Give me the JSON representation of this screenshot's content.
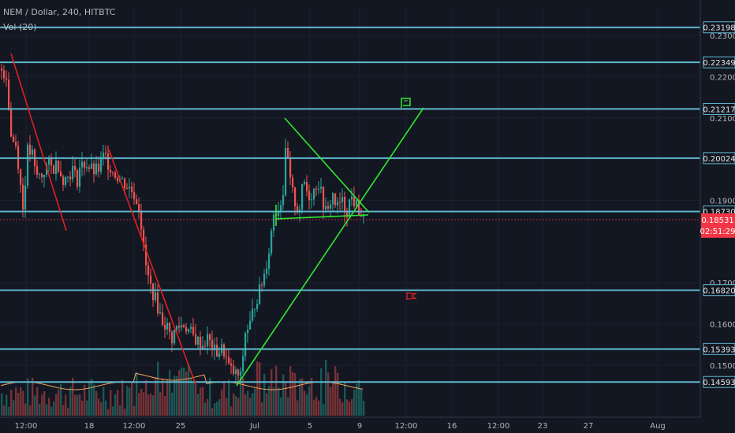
{
  "header": {
    "symbol_line": "NEM / Dollar, 240, HITBTC",
    "volume_line": "Vol (20)"
  },
  "colors": {
    "background": "#131722",
    "up": "#26a69a",
    "down": "#ef5350",
    "hline": "#5fb8cf",
    "trend_green": "#30e830",
    "trend_red": "#e02020",
    "price_badge": "#f23645",
    "volume_ma": "#f0a35a"
  },
  "chart_data": {
    "type": "candlestick",
    "title": "NEM / Dollar, 240, HITBTC",
    "indicator": "Vol (20)",
    "ylim": [
      0.1412,
      0.2367
    ],
    "y_ticks": [
      "0.23000",
      "0.22000",
      "0.21000",
      "0.20000",
      "0.19000",
      "0.17000",
      "0.16000",
      "0.15000"
    ],
    "x_ticks": [
      "12:00",
      "18",
      "12:00",
      "25",
      "Jul",
      "5",
      "9",
      "12:00",
      "16",
      "12:00",
      "23",
      "27",
      "Aug"
    ],
    "horizontal_levels": [
      "0.23198",
      "0.22349",
      "0.21217",
      "0.20024",
      "0.18730",
      "0.16820",
      "0.15393",
      "0.14593"
    ],
    "last_price": "0.18531",
    "countdown": "02:51:29",
    "close_path": [
      [
        0,
        0.222
      ],
      [
        8,
        0.22
      ],
      [
        12,
        0.206
      ],
      [
        20,
        0.203
      ],
      [
        28,
        0.188
      ],
      [
        34,
        0.202
      ],
      [
        40,
        0.201
      ],
      [
        44,
        0.196
      ],
      [
        52,
        0.196
      ],
      [
        60,
        0.199
      ],
      [
        66,
        0.1975
      ],
      [
        72,
        0.1995
      ],
      [
        76,
        0.1965
      ],
      [
        80,
        0.195
      ],
      [
        84,
        0.1955
      ],
      [
        92,
        0.198
      ],
      [
        96,
        0.194
      ],
      [
        100,
        0.198
      ],
      [
        108,
        0.199
      ],
      [
        112,
        0.198
      ],
      [
        118,
        0.197
      ],
      [
        124,
        0.1975
      ],
      [
        128,
        0.2
      ],
      [
        132,
        0.201
      ],
      [
        136,
        0.199
      ],
      [
        144,
        0.1965
      ],
      [
        150,
        0.1955
      ],
      [
        160,
        0.1935
      ],
      [
        168,
        0.192
      ],
      [
        176,
        0.188
      ],
      [
        182,
        0.176
      ],
      [
        188,
        0.17
      ],
      [
        196,
        0.166
      ],
      [
        204,
        0.161
      ],
      [
        212,
        0.159
      ],
      [
        216,
        0.156
      ],
      [
        222,
        0.159
      ],
      [
        232,
        0.16
      ],
      [
        240,
        0.158
      ],
      [
        248,
        0.156
      ],
      [
        256,
        0.155
      ],
      [
        262,
        0.1565
      ],
      [
        272,
        0.153
      ],
      [
        282,
        0.154
      ],
      [
        290,
        0.149
      ],
      [
        296,
        0.148
      ],
      [
        304,
        0.147
      ],
      [
        310,
        0.158
      ],
      [
        316,
        0.16
      ],
      [
        322,
        0.165
      ],
      [
        328,
        0.168
      ],
      [
        334,
        0.172
      ],
      [
        340,
        0.178
      ],
      [
        346,
        0.187
      ],
      [
        352,
        0.188
      ],
      [
        358,
        0.192
      ],
      [
        362,
        0.204
      ],
      [
        366,
        0.195
      ],
      [
        372,
        0.19
      ],
      [
        378,
        0.187
      ],
      [
        384,
        0.195
      ],
      [
        390,
        0.191
      ],
      [
        396,
        0.192
      ],
      [
        402,
        0.195
      ],
      [
        408,
        0.19
      ],
      [
        414,
        0.186
      ],
      [
        420,
        0.192
      ],
      [
        426,
        0.188
      ],
      [
        432,
        0.19
      ],
      [
        438,
        0.187
      ],
      [
        444,
        0.191
      ],
      [
        450,
        0.189
      ],
      [
        456,
        0.187
      ],
      [
        460,
        0.1853
      ]
    ],
    "volume_note": "volume bars with 20-period moving average across the bottom pane"
  }
}
